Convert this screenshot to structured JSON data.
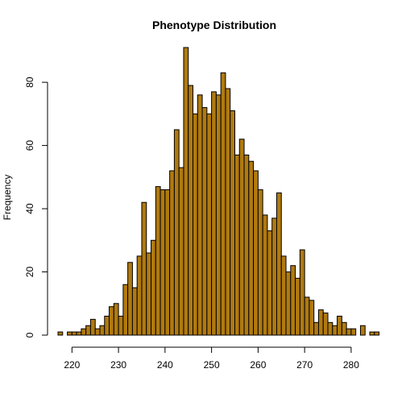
{
  "chart_data": {
    "type": "bar",
    "title": "Phenotype Distribution",
    "xlabel": "",
    "ylabel": "Frequency",
    "bar_color": "#B07A10",
    "bin_width": 1,
    "x_start": 217,
    "xlim": [
      217,
      284
    ],
    "ylim": [
      0,
      91
    ],
    "x_ticks": [
      220,
      230,
      240,
      250,
      260,
      270,
      280
    ],
    "y_ticks": [
      0,
      20,
      40,
      60,
      80
    ],
    "values": [
      1,
      0,
      1,
      1,
      1,
      2,
      3,
      5,
      2,
      3,
      6,
      9,
      10,
      6,
      16,
      23,
      15,
      25,
      42,
      26,
      30,
      47,
      46,
      46,
      52,
      65,
      53,
      91,
      79,
      70,
      76,
      72,
      70,
      77,
      76,
      83,
      78,
      71,
      57,
      62,
      57,
      55,
      52,
      46,
      38,
      33,
      37,
      45,
      25,
      20,
      22,
      18,
      27,
      12,
      11,
      4,
      8,
      7,
      4,
      3,
      6,
      4,
      2,
      2,
      0,
      3,
      0,
      1,
      1
    ]
  }
}
